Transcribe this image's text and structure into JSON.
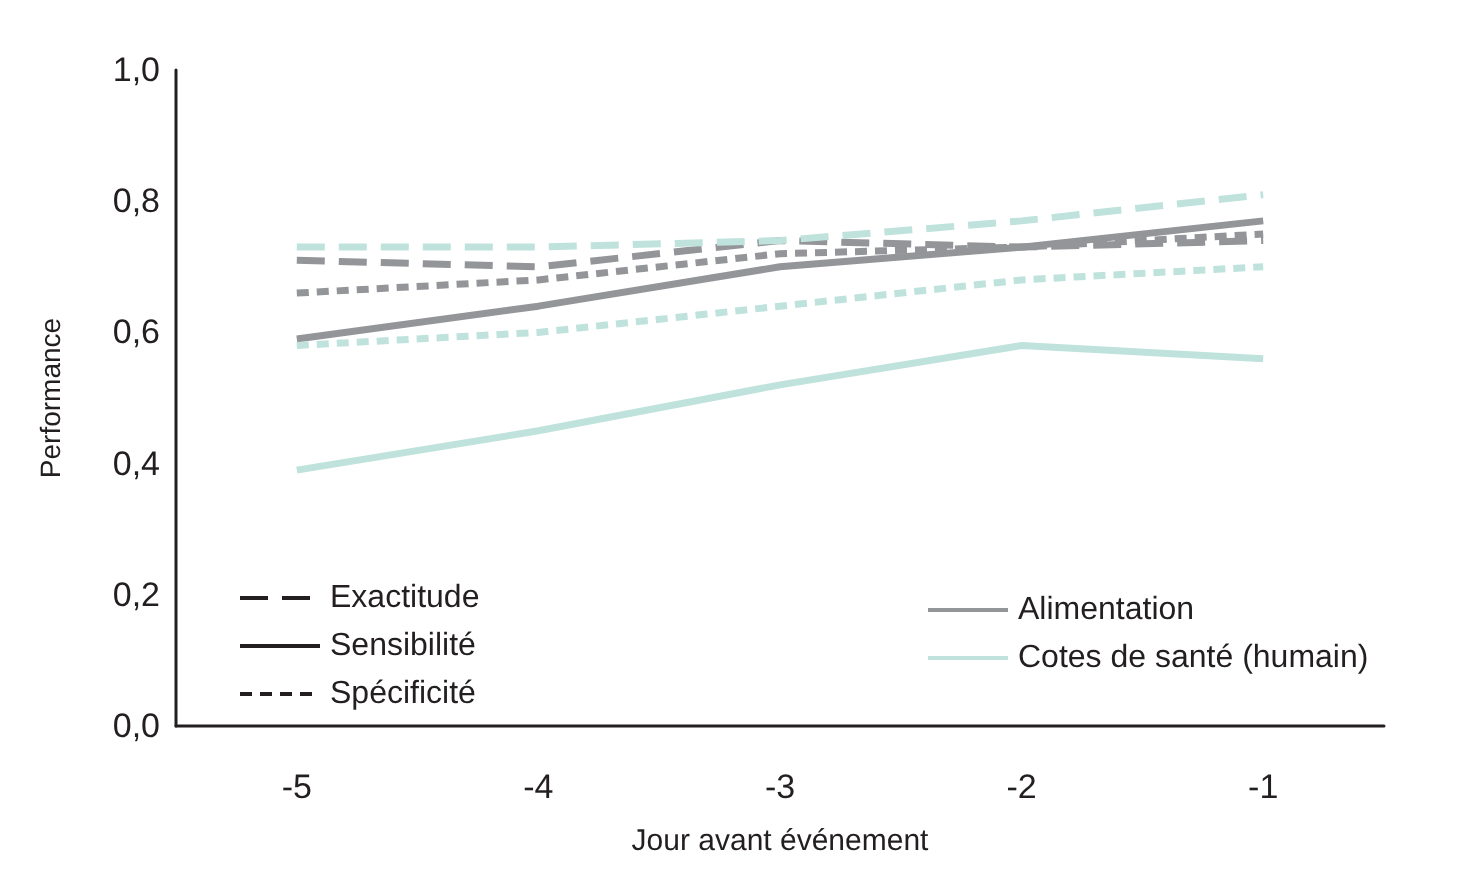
{
  "chart_data": {
    "type": "line",
    "xlabel": "Jour avant événement",
    "ylabel": "Performance",
    "categories": [
      "-5",
      "-4",
      "-3",
      "-2",
      "-1"
    ],
    "ylim": [
      0,
      1
    ],
    "yticks": [
      {
        "value": 0,
        "label": "0,0"
      },
      {
        "value": 0.2,
        "label": "0,2"
      },
      {
        "value": 0.4,
        "label": "0,4"
      },
      {
        "value": 0.6,
        "label": "0,6"
      },
      {
        "value": 0.8,
        "label": "0,8"
      },
      {
        "value": 1,
        "label": "1,0"
      }
    ],
    "grid": false,
    "legend": "bottom",
    "marker": "none",
    "series": [
      {
        "name": "Exactitude",
        "color": "#231f20",
        "line_style": "dashed",
        "values": [
          null,
          null,
          null,
          null,
          null
        ]
      },
      {
        "name": "Sensibilité",
        "color": "#231f20",
        "line_style": "solid",
        "values": [
          null,
          null,
          null,
          null,
          null
        ]
      },
      {
        "name": "Spécificité",
        "color": "#231f20",
        "line_style": "dotted",
        "values": [
          null,
          null,
          null,
          null,
          null
        ]
      },
      {
        "name": "Alimentation",
        "color": "#939598",
        "line_style": "solid",
        "values": [
          null,
          null,
          null,
          null,
          null
        ]
      },
      {
        "name": "Cotes de santé (humain)",
        "color": "#bfe3dc",
        "line_style": "solid",
        "values": [
          null,
          null,
          null,
          null,
          null
        ]
      },
      {
        "color": "#939598",
        "line_style": "dashed",
        "values": [
          0.71,
          0.7,
          0.74,
          0.73,
          0.74
        ]
      },
      {
        "color": "#939598",
        "line_style": "solid",
        "values": [
          0.59,
          0.64,
          0.7,
          0.73,
          0.77
        ]
      },
      {
        "color": "#939598",
        "line_style": "dotted",
        "values": [
          0.66,
          0.68,
          0.72,
          0.73,
          0.75
        ]
      },
      {
        "color": "#bfe3dc",
        "line_style": "dashed",
        "values": [
          0.73,
          0.73,
          0.74,
          0.77,
          0.81
        ]
      },
      {
        "color": "#bfe3dc",
        "line_style": "solid",
        "values": [
          0.39,
          0.45,
          0.52,
          0.58,
          0.56
        ]
      },
      {
        "color": "#bfe3dc",
        "line_style": "dotted",
        "values": [
          0.58,
          0.6,
          0.64,
          0.68,
          0.7
        ]
      }
    ]
  }
}
